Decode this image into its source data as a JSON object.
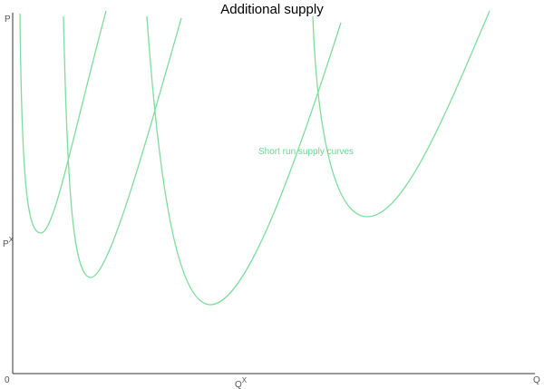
{
  "title": "Additional supply",
  "axes": {
    "y_label": "P",
    "origin": "0",
    "x_label": "Q",
    "price_mark": {
      "base": "P",
      "sup": "X"
    },
    "quantity_mark": {
      "base": "Q",
      "sup": "X"
    }
  },
  "annotation": "Short run supply curves"
}
